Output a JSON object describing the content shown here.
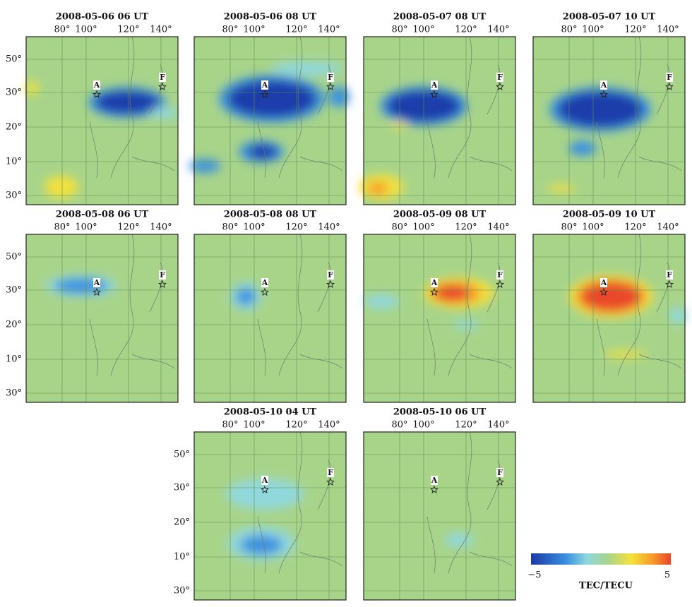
{
  "panels": [
    {
      "title": "2008-05-06 06 UT"
    },
    {
      "title": "2008-05-06 08 UT"
    },
    {
      "title": "2008-05-07 08 UT"
    },
    {
      "title": "2008-05-07 10 UT"
    },
    {
      "title": "2008-05-08 06 UT"
    },
    {
      "title": "2008-05-08 08 UT"
    },
    {
      "title": "2008-05-09 08 UT"
    },
    {
      "title": "2008-05-09 10 UT"
    },
    {
      "title": "2008-05-10 04 UT"
    },
    {
      "title": "2008-05-10 06 UT"
    }
  ],
  "lon_labels": [
    "80°",
    "100°",
    "120°",
    "140°"
  ],
  "lat_labels": [
    "50°",
    "30°",
    "20°",
    "10°",
    "30°"
  ],
  "markers": [
    "A",
    "F"
  ],
  "colorbar": {
    "min_label": "−5",
    "max_label": "5",
    "label": "TEC/TECU"
  }
}
